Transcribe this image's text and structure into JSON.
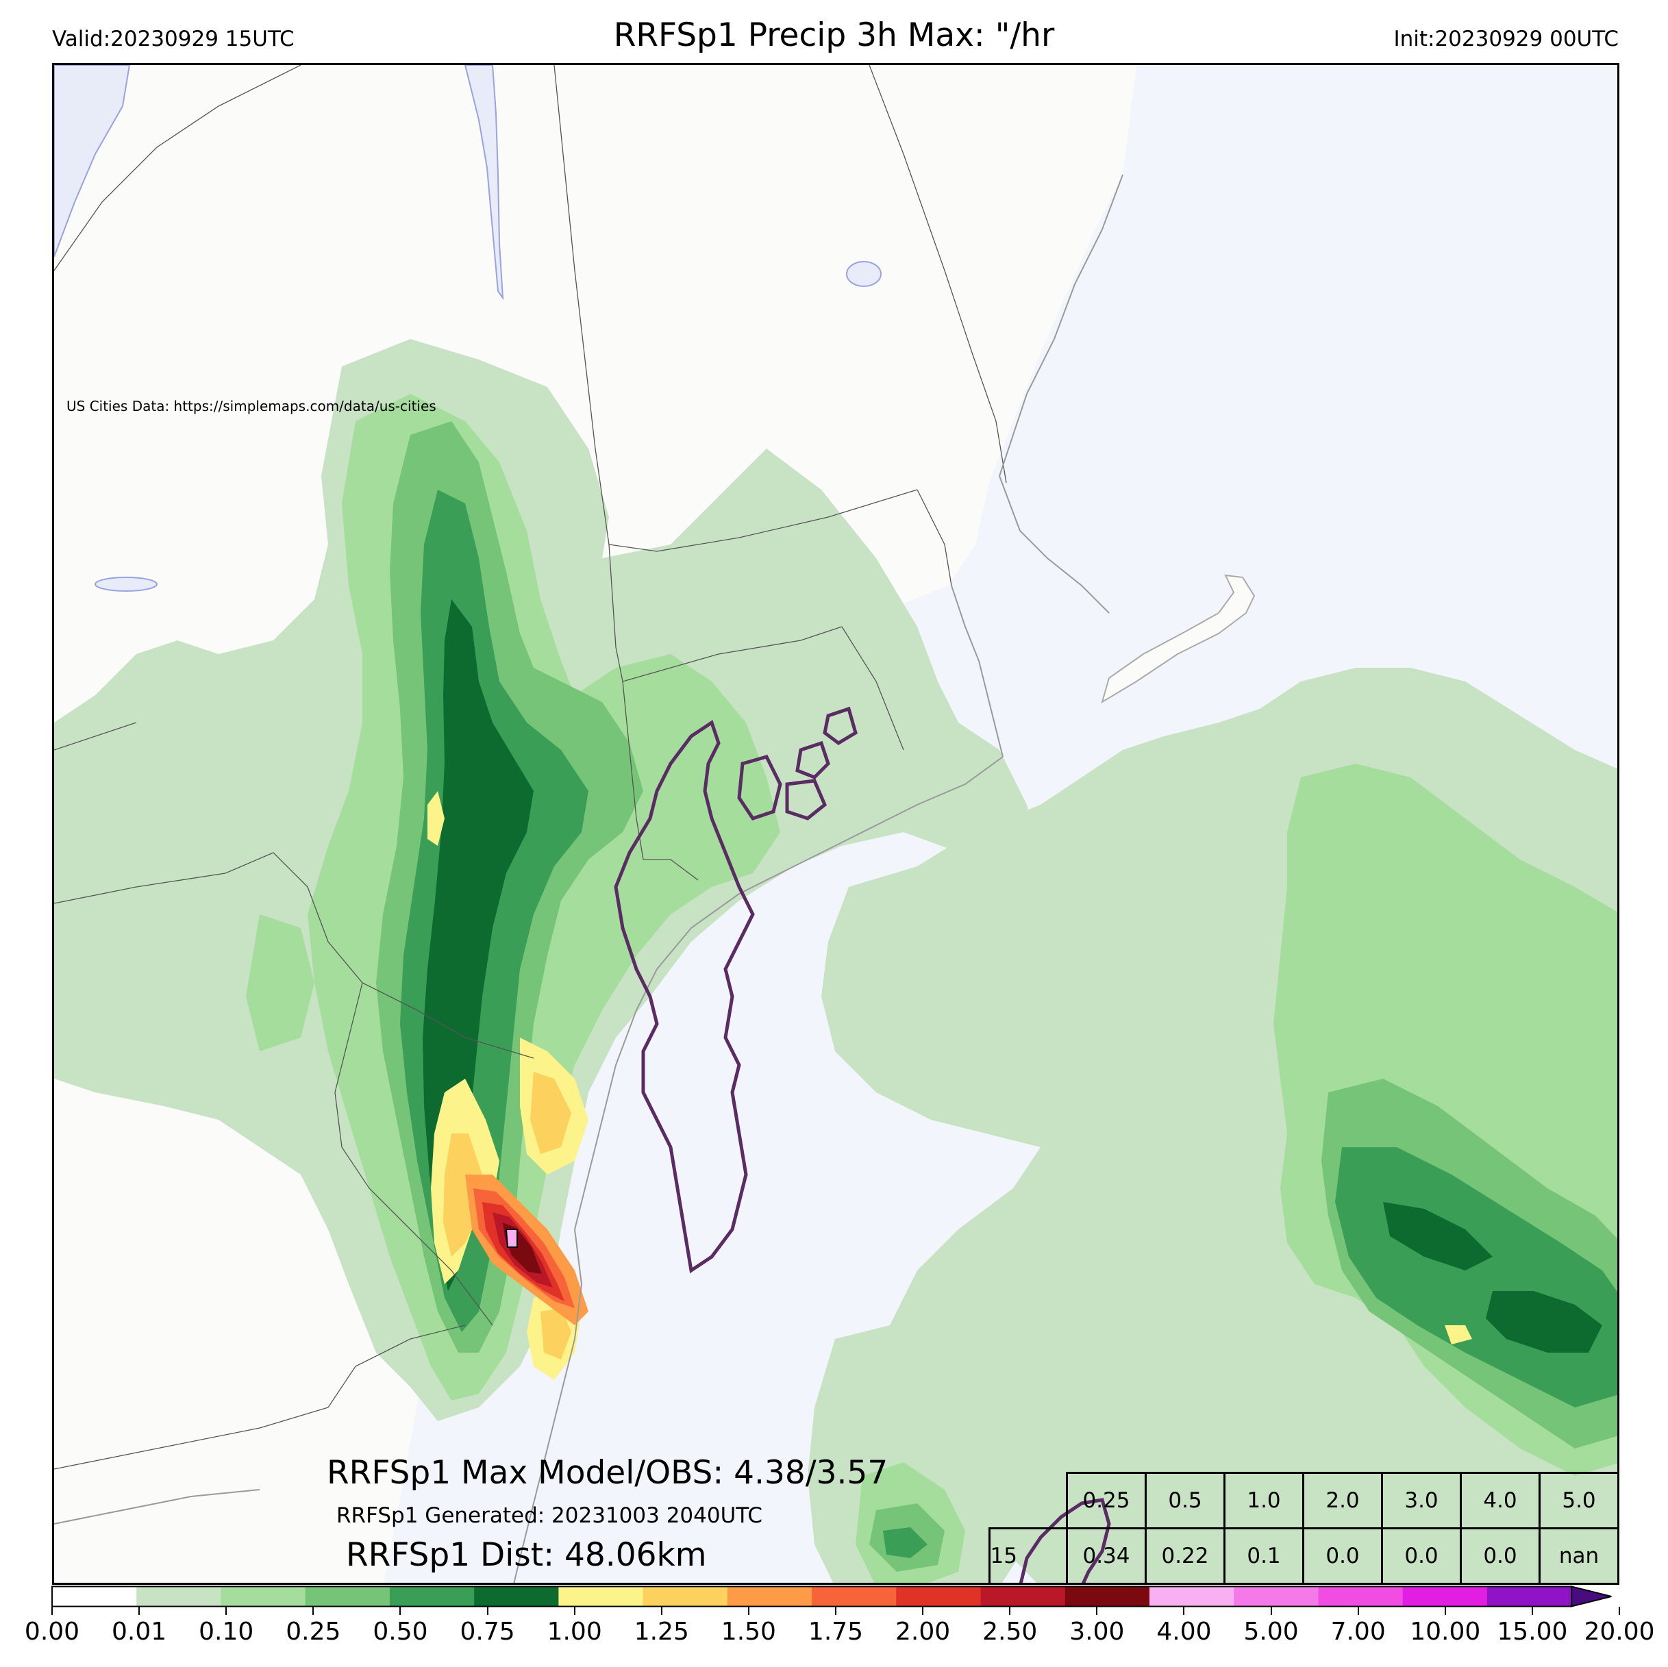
{
  "header": {
    "valid": "Valid:20230929 15UTC",
    "title": "RRFSp1 Precip 3h Max: \"/hr",
    "init": "Init:20230929 00UTC"
  },
  "map": {
    "credit": "US Cities Data: https://simplemaps.com/data/us-cities",
    "land_color": "#fbfbf9",
    "water_color": "#f2f5fb",
    "model_contour_color": "#5b2c63",
    "stats": {
      "max": "RRFSp1 Max Model/OBS: 4.38/3.57",
      "generated": "RRFSp1 Generated: 20231003 2040UTC",
      "dist": "RRFSp1 Dist: 48.06km"
    }
  },
  "score_table": {
    "thresholds": [
      "0.25",
      "0.5",
      "1.0",
      "2.0",
      "3.0",
      "4.0",
      "5.0"
    ],
    "row_label": "15",
    "scores": [
      "0.34",
      "0.22",
      "0.1",
      "0.0",
      "0.0",
      "0.0",
      "nan"
    ]
  },
  "colorbar": {
    "labels": [
      "0.00",
      "0.01",
      "0.10",
      "0.25",
      "0.50",
      "0.75",
      "1.00",
      "1.25",
      "1.50",
      "1.75",
      "2.00",
      "2.50",
      "3.00",
      "4.00",
      "5.00",
      "7.00",
      "10.00",
      "15.00",
      "20.00"
    ],
    "colors": [
      "#ffffff",
      "#c7e3c4",
      "#a5dd9c",
      "#76c477",
      "#3a9e56",
      "#0d6b30",
      "#fcf38a",
      "#fdd15d",
      "#fd9b46",
      "#f8643a",
      "#e03226",
      "#ba1828",
      "#7a0a10",
      "#f9b0f2",
      "#f57ae9",
      "#f24de3",
      "#e21ee3",
      "#9013c8"
    ],
    "extend_color": "#4b0b80"
  }
}
